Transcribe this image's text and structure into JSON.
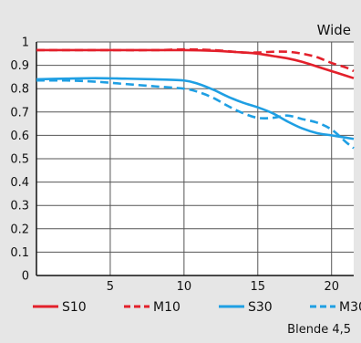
{
  "chart_data": {
    "type": "line",
    "corner_label": "Wide",
    "footnote": "Blende 4,5",
    "xlim": [
      0,
      21.5
    ],
    "ylim": [
      0,
      1
    ],
    "xticks": [
      5,
      10,
      15,
      20
    ],
    "xtick_labels": [
      "5",
      "10",
      "15",
      "20"
    ],
    "yticks": [
      0,
      0.1,
      0.2,
      0.3,
      0.4,
      0.5,
      0.6,
      0.7,
      0.8,
      0.9,
      1
    ],
    "ytick_labels": [
      "0",
      "0.1",
      "0.2",
      "0.3",
      "0.4",
      "0.5",
      "0.6",
      "0.7",
      "0.8",
      "0.9",
      "1"
    ],
    "grid": true,
    "legend": "bottom",
    "series": [
      {
        "name": "S10",
        "color": "#e3202b",
        "dash": "solid",
        "x": [
          0,
          2,
          4,
          6,
          8,
          10,
          12,
          14,
          15,
          16,
          17,
          18,
          19,
          20,
          21,
          21.5
        ],
        "y": [
          0.965,
          0.965,
          0.965,
          0.965,
          0.965,
          0.965,
          0.962,
          0.955,
          0.95,
          0.94,
          0.93,
          0.915,
          0.895,
          0.875,
          0.855,
          0.845
        ]
      },
      {
        "name": "M10",
        "color": "#e3202b",
        "dash": "dashed",
        "x": [
          0,
          4,
          8,
          10,
          12,
          14,
          15,
          16,
          17,
          18,
          19,
          20,
          21,
          21.5
        ],
        "y": [
          0.965,
          0.965,
          0.965,
          0.968,
          0.965,
          0.955,
          0.955,
          0.958,
          0.958,
          0.95,
          0.935,
          0.91,
          0.89,
          0.875
        ]
      },
      {
        "name": "S30",
        "color": "#1f9fe3",
        "dash": "solid",
        "x": [
          0,
          2,
          4,
          6,
          8,
          10,
          11,
          12,
          13,
          14,
          15,
          16,
          17,
          18,
          19,
          20,
          21,
          21.5
        ],
        "y": [
          0.84,
          0.843,
          0.845,
          0.843,
          0.84,
          0.835,
          0.82,
          0.795,
          0.765,
          0.74,
          0.72,
          0.695,
          0.66,
          0.63,
          0.61,
          0.6,
          0.59,
          0.585
        ]
      },
      {
        "name": "M30",
        "color": "#1f9fe3",
        "dash": "dashed",
        "x": [
          0,
          2,
          4,
          6,
          8,
          10,
          11,
          12,
          13,
          14,
          15,
          16,
          17,
          18,
          19,
          20,
          21,
          21.5
        ],
        "y": [
          0.835,
          0.835,
          0.83,
          0.82,
          0.81,
          0.8,
          0.785,
          0.76,
          0.725,
          0.695,
          0.675,
          0.675,
          0.685,
          0.67,
          0.655,
          0.625,
          0.57,
          0.545
        ]
      }
    ]
  }
}
